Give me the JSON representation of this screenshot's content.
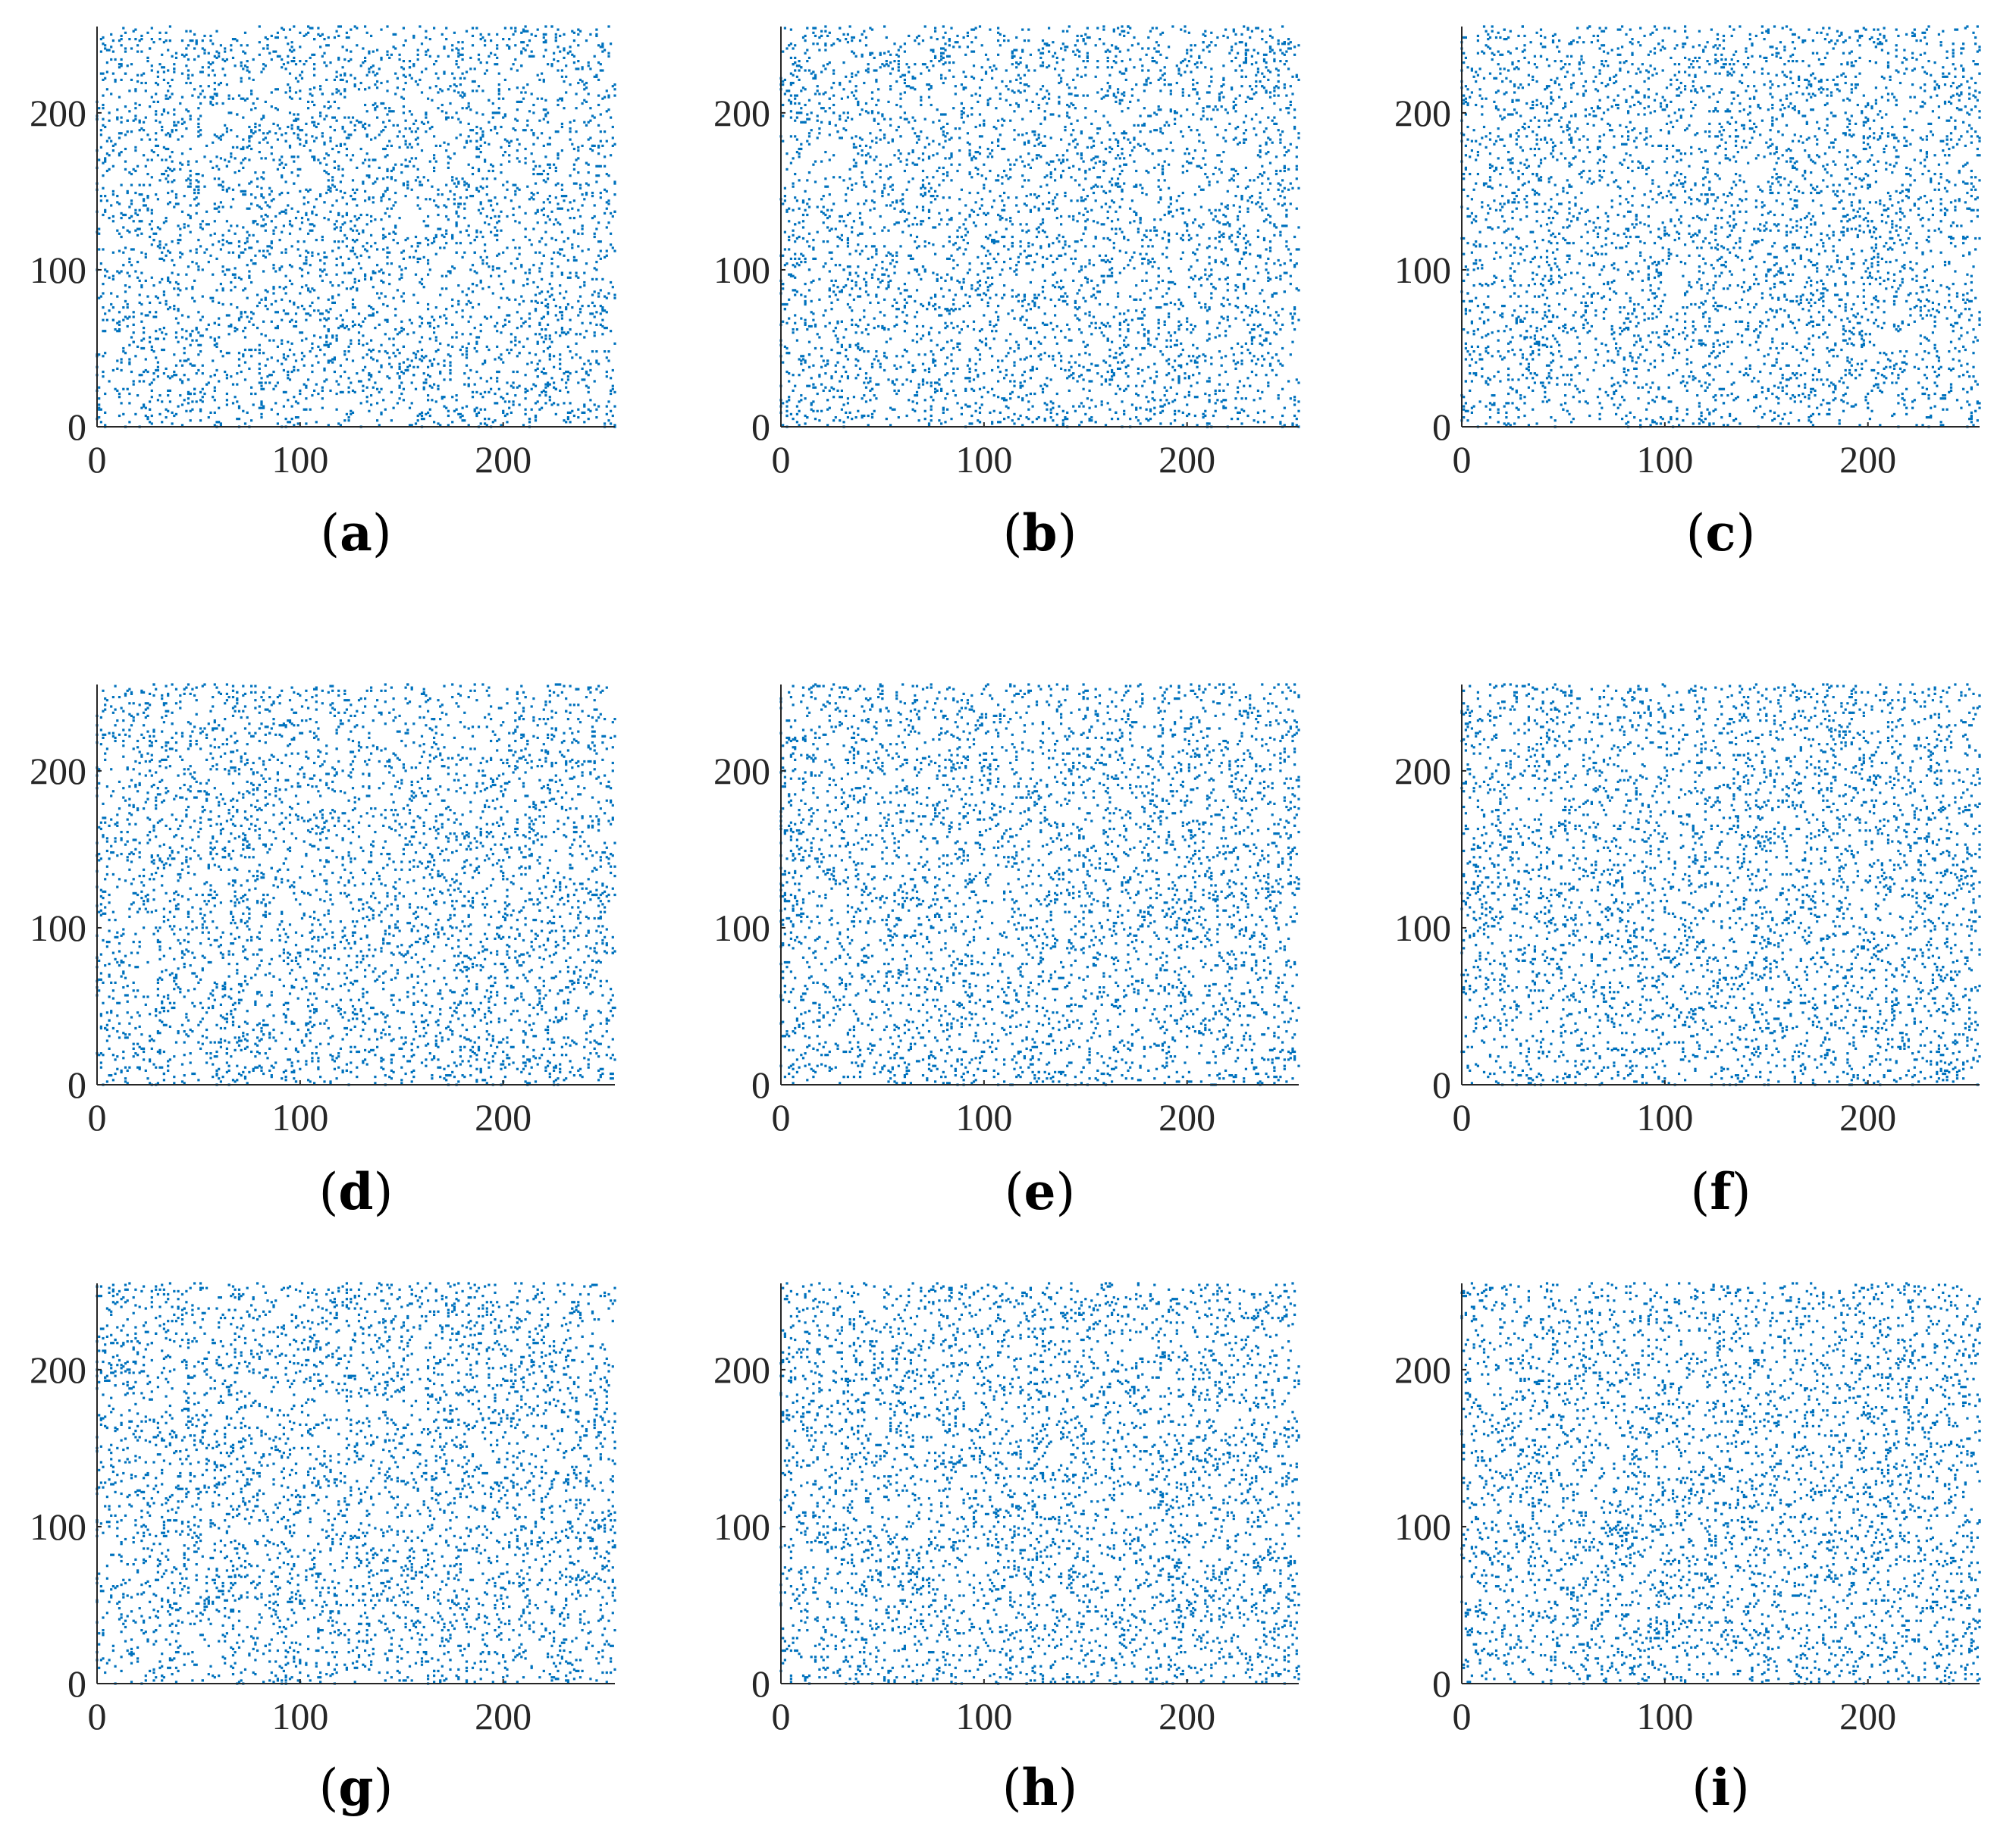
{
  "figure": {
    "title": "",
    "description_kind": "3x3 grid of correlation scatter plots"
  },
  "style": {
    "point_color": "#0072BD",
    "axis_color": "#262626",
    "background": "#ffffff"
  },
  "chart_data": [
    {
      "type": "scatter",
      "panel_label": "a",
      "title": "",
      "xlabel": "",
      "ylabel": "",
      "xlim": [
        0,
        255
      ],
      "ylim": [
        0,
        255
      ],
      "xticks": [
        0,
        100,
        200
      ],
      "yticks": [
        0,
        100,
        200
      ],
      "grid": false,
      "n_points": 4000,
      "seed": 11
    },
    {
      "type": "scatter",
      "panel_label": "b",
      "title": "",
      "xlabel": "",
      "ylabel": "",
      "xlim": [
        0,
        255
      ],
      "ylim": [
        0,
        255
      ],
      "xticks": [
        0,
        100,
        200
      ],
      "yticks": [
        0,
        100,
        200
      ],
      "grid": false,
      "n_points": 4000,
      "seed": 23
    },
    {
      "type": "scatter",
      "panel_label": "c",
      "title": "",
      "xlabel": "",
      "ylabel": "",
      "xlim": [
        0,
        255
      ],
      "ylim": [
        0,
        255
      ],
      "xticks": [
        0,
        100,
        200
      ],
      "yticks": [
        0,
        100,
        200
      ],
      "grid": false,
      "n_points": 4000,
      "seed": 37
    },
    {
      "type": "scatter",
      "panel_label": "d",
      "title": "",
      "xlabel": "",
      "ylabel": "",
      "xlim": [
        0,
        255
      ],
      "ylim": [
        0,
        255
      ],
      "xticks": [
        0,
        100,
        200
      ],
      "yticks": [
        0,
        100,
        200
      ],
      "grid": false,
      "n_points": 4000,
      "seed": 41
    },
    {
      "type": "scatter",
      "panel_label": "e",
      "title": "",
      "xlabel": "",
      "ylabel": "",
      "xlim": [
        0,
        255
      ],
      "ylim": [
        0,
        255
      ],
      "xticks": [
        0,
        100,
        200
      ],
      "yticks": [
        0,
        100,
        200
      ],
      "grid": false,
      "n_points": 4000,
      "seed": 53
    },
    {
      "type": "scatter",
      "panel_label": "f",
      "title": "",
      "xlabel": "",
      "ylabel": "",
      "xlim": [
        0,
        255
      ],
      "ylim": [
        0,
        255
      ],
      "xticks": [
        0,
        100,
        200
      ],
      "yticks": [
        0,
        100,
        200
      ],
      "grid": false,
      "n_points": 4000,
      "seed": 67
    },
    {
      "type": "scatter",
      "panel_label": "g",
      "title": "",
      "xlabel": "",
      "ylabel": "",
      "xlim": [
        0,
        255
      ],
      "ylim": [
        0,
        255
      ],
      "xticks": [
        0,
        100,
        200
      ],
      "yticks": [
        0,
        100,
        200
      ],
      "grid": false,
      "n_points": 4000,
      "seed": 79
    },
    {
      "type": "scatter",
      "panel_label": "h",
      "title": "",
      "xlabel": "",
      "ylabel": "",
      "xlim": [
        0,
        255
      ],
      "ylim": [
        0,
        255
      ],
      "xticks": [
        0,
        100,
        200
      ],
      "yticks": [
        0,
        100,
        200
      ],
      "grid": false,
      "n_points": 4000,
      "seed": 83
    },
    {
      "type": "scatter",
      "panel_label": "i",
      "title": "",
      "xlabel": "",
      "ylabel": "",
      "xlim": [
        0,
        255
      ],
      "ylim": [
        0,
        255
      ],
      "xticks": [
        0,
        100,
        200
      ],
      "yticks": [
        0,
        100,
        200
      ],
      "grid": false,
      "n_points": 4000,
      "seed": 97
    }
  ]
}
